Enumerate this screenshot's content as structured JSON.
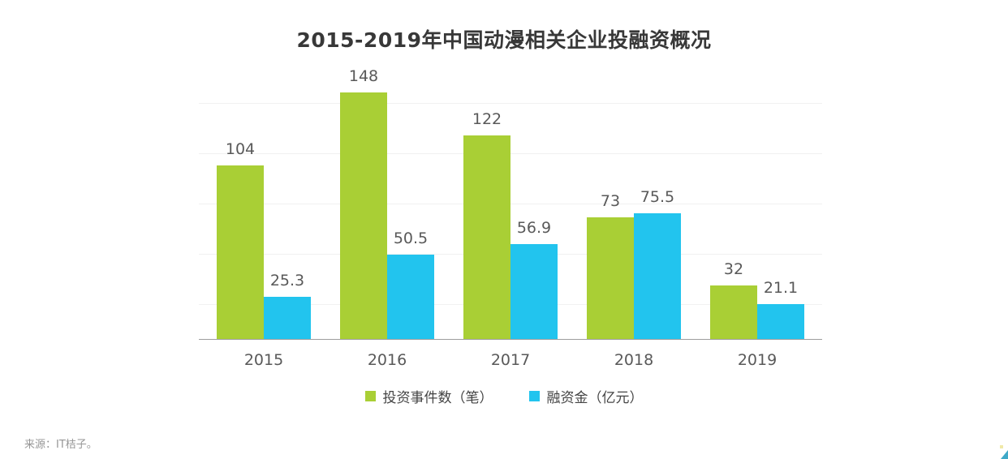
{
  "page": {
    "title": "2015-2019年中国动漫相关企业投融资概况",
    "source": "来源：IT桔子。"
  },
  "chart_data": {
    "type": "bar",
    "title": "2015-2019年中国动漫相关企业投融资概况",
    "categories": [
      "2015",
      "2016",
      "2017",
      "2018",
      "2019"
    ],
    "series": [
      {
        "name": "投资事件数（笔）",
        "color": "#a9cf35",
        "values": [
          104,
          148,
          122,
          73,
          32
        ]
      },
      {
        "name": "融资金（亿元）",
        "color": "#22c4ee",
        "values": [
          25.3,
          50.5,
          56.9,
          75.5,
          21.1
        ]
      }
    ],
    "value_labels": true,
    "legend_position": "bottom",
    "grid": "faint-horizontal",
    "ylim": [
      0,
      148
    ],
    "xlabel": "",
    "ylabel": ""
  },
  "colors": {
    "series_green": "#a9cf35",
    "series_blue": "#22c4ee",
    "value_label_text": "#595959",
    "axis_line": "#9e9e9e",
    "gridline": "#f1f1f1",
    "title_text": "#383838",
    "source_text": "#969696",
    "corner_triangle": "#3fa9c8"
  }
}
